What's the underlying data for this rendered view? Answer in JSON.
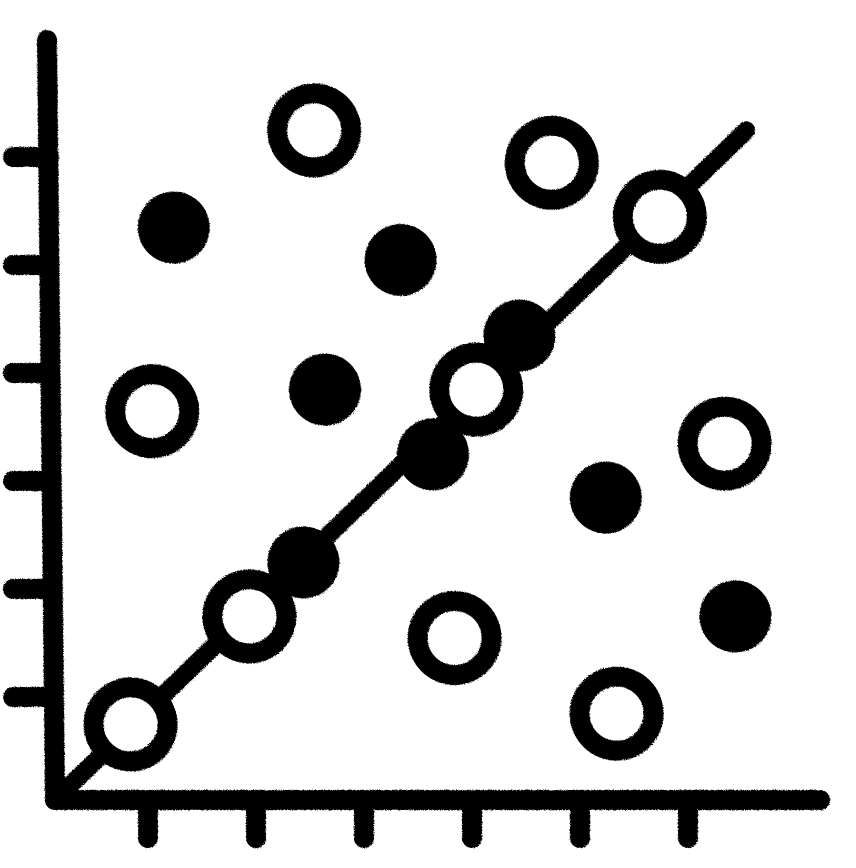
{
  "chart_data": {
    "type": "scatter",
    "title": "",
    "xlabel": "",
    "ylabel": "",
    "xlim": [
      0,
      6.5
    ],
    "ylim": [
      0,
      6.5
    ],
    "grid": false,
    "legend": "none",
    "x_ticks": [
      1,
      2,
      3,
      4,
      5,
      6
    ],
    "y_ticks": [
      1,
      2,
      3,
      4,
      5,
      6
    ],
    "series": [
      {
        "marker": "open-circle",
        "points": [
          {
            "x": 0.7,
            "y": 0.7
          },
          {
            "x": 1.8,
            "y": 1.7
          },
          {
            "x": 3.9,
            "y": 3.8
          },
          {
            "x": 5.6,
            "y": 5.4
          },
          {
            "x": 0.9,
            "y": 3.6
          },
          {
            "x": 2.4,
            "y": 6.2
          },
          {
            "x": 4.6,
            "y": 5.9
          },
          {
            "x": 6.2,
            "y": 3.3
          },
          {
            "x": 3.7,
            "y": 1.5
          },
          {
            "x": 5.2,
            "y": 0.8
          }
        ]
      },
      {
        "marker": "filled-circle",
        "points": [
          {
            "x": 2.3,
            "y": 2.2
          },
          {
            "x": 3.5,
            "y": 3.2
          },
          {
            "x": 4.3,
            "y": 4.3
          },
          {
            "x": 1.1,
            "y": 5.3
          },
          {
            "x": 3.2,
            "y": 5.0
          },
          {
            "x": 2.5,
            "y": 3.8
          },
          {
            "x": 5.1,
            "y": 2.8
          },
          {
            "x": 6.3,
            "y": 1.7
          }
        ]
      }
    ],
    "trend_line": {
      "x": [
        0,
        6.4
      ],
      "y": [
        0,
        6.2
      ]
    },
    "colors": {
      "ink": "#000000",
      "background": "#ffffff"
    }
  }
}
